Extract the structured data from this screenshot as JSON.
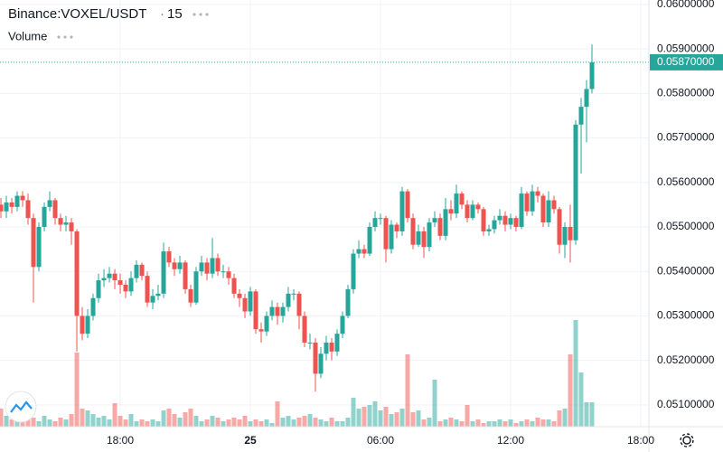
{
  "chart_data": {
    "type": "candlestick",
    "title": "Binance:VOXEL/USDT",
    "interval": "15",
    "volume_label": "Volume",
    "up_color": "#26a69a",
    "down_color": "#ef5350",
    "grid": true,
    "xlim": [
      0.83,
      120.5
    ],
    "xticks": [
      {
        "value": 23,
        "label": "18:00"
      },
      {
        "value": 47,
        "label": "25"
      },
      {
        "value": 71,
        "label": "06:00"
      },
      {
        "value": 95,
        "label": "12:00"
      },
      {
        "value": 119,
        "label": "18:00"
      }
    ],
    "ylim": [
      0.05051,
      0.0601
    ],
    "yticks": [
      {
        "value": 0.051,
        "label": "0.05100000"
      },
      {
        "value": 0.052,
        "label": "0.05200000"
      },
      {
        "value": 0.053,
        "label": "0.05300000"
      },
      {
        "value": 0.054,
        "label": "0.05400000"
      },
      {
        "value": 0.055,
        "label": "0.05500000"
      },
      {
        "value": 0.056,
        "label": "0.05600000"
      },
      {
        "value": 0.057,
        "label": "0.05700000"
      },
      {
        "value": 0.058,
        "label": "0.05800000"
      },
      {
        "value": 0.059,
        "label": "0.05900000"
      },
      {
        "value": 0.06,
        "label": "0.06000000"
      }
    ],
    "last_price": {
      "value": 0.0587,
      "label": "0.05870000"
    },
    "open": [
      0.0556,
      0.0555,
      0.05535,
      0.05555,
      0.05545,
      0.0557,
      0.0556,
      0.0552,
      0.0541,
      0.055,
      0.05545,
      0.0556,
      0.0552,
      0.05505,
      0.0551,
      0.0549,
      0.053,
      0.0526,
      0.053,
      0.0534,
      0.0538,
      0.05385,
      0.05395,
      0.0538,
      0.0537,
      0.05355,
      0.05385,
      0.05415,
      0.0539,
      0.0533,
      0.05345,
      0.0535,
      0.05445,
      0.0542,
      0.05405,
      0.0542,
      0.0536,
      0.0533,
      0.054,
      0.0542,
      0.05395,
      0.0543,
      0.054,
      0.054,
      0.05385,
      0.0535,
      0.0534,
      0.0531,
      0.05355,
      0.0527,
      0.05265,
      0.053,
      0.0532,
      0.053,
      0.0532,
      0.0535,
      0.0535,
      0.053,
      0.0524,
      0.0524,
      0.0517,
      0.05215,
      0.0524,
      0.0522,
      0.0526,
      0.053,
      0.0536,
      0.0544,
      0.0545,
      0.0544,
      0.055,
      0.0552,
      0.0552,
      0.0545,
      0.05505,
      0.0549,
      0.0558,
      0.0552,
      0.0546,
      0.0549,
      0.05455,
      0.0551,
      0.0552,
      0.0548,
      0.0554,
      0.0553,
      0.05575,
      0.0555,
      0.0552,
      0.0555,
      0.0554,
      0.0549,
      0.05495,
      0.05515,
      0.05525,
      0.05505,
      0.0552,
      0.055,
      0.05575,
      0.05535,
      0.0558,
      0.0557,
      0.0551,
      0.0556,
      0.0554,
      0.0546,
      0.055,
      0.0547,
      0.0573,
      0.0577,
      0.0581
    ],
    "high": [
      0.05575,
      0.05565,
      0.0557,
      0.05565,
      0.0558,
      0.0558,
      0.05575,
      0.0553,
      0.0551,
      0.05555,
      0.0558,
      0.05565,
      0.0553,
      0.05525,
      0.0552,
      0.05495,
      0.0532,
      0.05315,
      0.0535,
      0.05395,
      0.05405,
      0.0541,
      0.05405,
      0.05395,
      0.0538,
      0.054,
      0.05425,
      0.0542,
      0.054,
      0.0536,
      0.0537,
      0.05465,
      0.05455,
      0.0543,
      0.05435,
      0.05425,
      0.0537,
      0.0541,
      0.05435,
      0.0543,
      0.05475,
      0.0544,
      0.05415,
      0.0541,
      0.05395,
      0.0536,
      0.0535,
      0.05365,
      0.0536,
      0.05285,
      0.0531,
      0.05335,
      0.0533,
      0.0533,
      0.05365,
      0.0536,
      0.05355,
      0.0531,
      0.0526,
      0.0525,
      0.0523,
      0.05255,
      0.0525,
      0.0527,
      0.0531,
      0.0537,
      0.0545,
      0.0547,
      0.0546,
      0.0551,
      0.05535,
      0.0553,
      0.05525,
      0.05515,
      0.0551,
      0.0559,
      0.05585,
      0.0553,
      0.05505,
      0.055,
      0.0552,
      0.05535,
      0.0553,
      0.05565,
      0.0556,
      0.05595,
      0.0558,
      0.0556,
      0.0556,
      0.05555,
      0.05545,
      0.05505,
      0.05525,
      0.0554,
      0.05535,
      0.0553,
      0.05525,
      0.0559,
      0.0558,
      0.05595,
      0.0559,
      0.05575,
      0.0558,
      0.0557,
      0.05545,
      0.0551,
      0.0555,
      0.0574,
      0.0579,
      0.0583,
      0.0591
    ],
    "low": [
      0.05475,
      0.0552,
      0.0552,
      0.0553,
      0.05535,
      0.05545,
      0.05505,
      0.0533,
      0.054,
      0.0549,
      0.05535,
      0.05505,
      0.0549,
      0.0549,
      0.0546,
      0.0522,
      0.05245,
      0.0525,
      0.0529,
      0.0533,
      0.05365,
      0.05375,
      0.0536,
      0.0535,
      0.0534,
      0.05345,
      0.05375,
      0.0538,
      0.0532,
      0.05315,
      0.05335,
      0.0534,
      0.0541,
      0.0539,
      0.05395,
      0.0535,
      0.0532,
      0.05325,
      0.0539,
      0.0538,
      0.05385,
      0.0539,
      0.05385,
      0.0537,
      0.0534,
      0.0532,
      0.05295,
      0.053,
      0.0526,
      0.0524,
      0.05255,
      0.0529,
      0.0528,
      0.05285,
      0.0531,
      0.05335,
      0.0527,
      0.0523,
      0.05225,
      0.0513,
      0.0516,
      0.052,
      0.052,
      0.0521,
      0.0525,
      0.05295,
      0.0535,
      0.0543,
      0.0543,
      0.05435,
      0.0549,
      0.05505,
      0.0542,
      0.0544,
      0.05475,
      0.0548,
      0.0551,
      0.0545,
      0.05455,
      0.0543,
      0.05445,
      0.055,
      0.0547,
      0.0547,
      0.05515,
      0.0552,
      0.0554,
      0.0551,
      0.05515,
      0.0553,
      0.0548,
      0.0548,
      0.05485,
      0.05505,
      0.0549,
      0.05495,
      0.0549,
      0.05495,
      0.05525,
      0.05525,
      0.05555,
      0.055,
      0.055,
      0.0553,
      0.0544,
      0.0543,
      0.0542,
      0.0546,
      0.0562,
      0.0569,
      0.058
    ],
    "close": [
      0.0555,
      0.05535,
      0.05555,
      0.05545,
      0.0557,
      0.0556,
      0.0552,
      0.0541,
      0.055,
      0.05545,
      0.0556,
      0.0552,
      0.05505,
      0.0551,
      0.0549,
      0.053,
      0.0526,
      0.053,
      0.0534,
      0.0538,
      0.05385,
      0.05395,
      0.0538,
      0.0537,
      0.05355,
      0.05385,
      0.05415,
      0.0539,
      0.0533,
      0.05345,
      0.0535,
      0.05445,
      0.0542,
      0.05405,
      0.0542,
      0.0536,
      0.0533,
      0.054,
      0.0542,
      0.05395,
      0.0543,
      0.054,
      0.054,
      0.05385,
      0.0535,
      0.0534,
      0.0531,
      0.05355,
      0.0527,
      0.05265,
      0.053,
      0.0532,
      0.053,
      0.0532,
      0.0535,
      0.0535,
      0.053,
      0.0524,
      0.0524,
      0.0517,
      0.05215,
      0.0524,
      0.0522,
      0.0526,
      0.053,
      0.0536,
      0.0544,
      0.0545,
      0.0544,
      0.055,
      0.0552,
      0.0552,
      0.0545,
      0.05505,
      0.0549,
      0.0558,
      0.0552,
      0.0546,
      0.0549,
      0.05455,
      0.0551,
      0.0552,
      0.0548,
      0.0554,
      0.0553,
      0.05575,
      0.0555,
      0.0552,
      0.0555,
      0.0554,
      0.0549,
      0.05495,
      0.05515,
      0.05525,
      0.05505,
      0.0552,
      0.055,
      0.05575,
      0.05535,
      0.0558,
      0.0557,
      0.0551,
      0.0556,
      0.0554,
      0.0546,
      0.055,
      0.0547,
      0.0573,
      0.0577,
      0.0581,
      0.0587
    ],
    "volume": [
      38,
      20,
      12,
      8,
      10,
      8,
      12,
      10,
      6,
      12,
      8,
      6,
      10,
      8,
      14,
      82,
      20,
      18,
      14,
      10,
      12,
      8,
      26,
      12,
      8,
      14,
      6,
      8,
      6,
      8,
      6,
      18,
      20,
      14,
      10,
      16,
      20,
      12,
      6,
      8,
      12,
      10,
      6,
      8,
      10,
      8,
      12,
      6,
      8,
      6,
      8,
      4,
      28,
      10,
      12,
      8,
      10,
      12,
      14,
      10,
      8,
      6,
      10,
      6,
      6,
      10,
      32,
      20,
      22,
      24,
      28,
      18,
      22,
      14,
      16,
      20,
      80,
      16,
      18,
      8,
      10,
      52,
      6,
      8,
      10,
      8,
      6,
      24,
      6,
      8,
      4,
      6,
      6,
      8,
      6,
      8,
      4,
      6,
      8,
      6,
      10,
      8,
      8,
      6,
      18,
      20,
      80,
      118,
      60,
      27,
      27
    ]
  }
}
